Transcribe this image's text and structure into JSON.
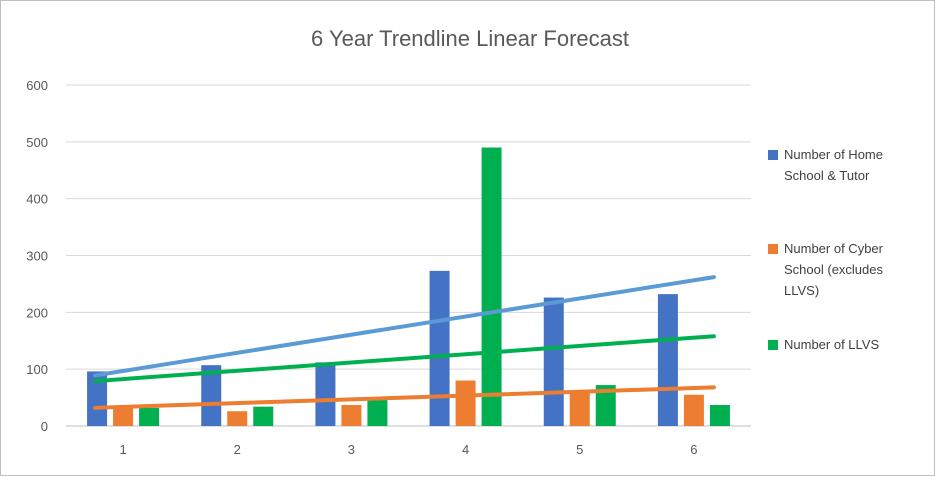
{
  "chart_data": {
    "type": "bar",
    "title": "6 Year Trendline Linear Forecast",
    "xlabel": "",
    "ylabel": "",
    "categories": [
      "1",
      "2",
      "3",
      "4",
      "5",
      "6"
    ],
    "ylim": [
      0,
      600
    ],
    "yticks": [
      "0",
      "100",
      "200",
      "300",
      "400",
      "500",
      "600"
    ],
    "grid": true,
    "legend_position": "right",
    "series": [
      {
        "name": "Number of Home School & Tutor",
        "legend_lines": [
          "Number of Home",
          "School & Tutor"
        ],
        "color": "#4472C4",
        "trend_color": "#5B9BD5",
        "values": [
          96,
          107,
          112,
          273,
          226,
          232
        ],
        "trendline": [
          89,
          262
        ]
      },
      {
        "name": "Number of Cyber School (excludes LLVS)",
        "legend_lines": [
          "Number of Cyber",
          "School (excludes",
          "LLVS)"
        ],
        "color": "#ED7D31",
        "trend_color": "#ED7D31",
        "values": [
          36,
          26,
          37,
          80,
          60,
          55
        ],
        "trendline": [
          32,
          68
        ]
      },
      {
        "name": "Number of LLVS",
        "legend_lines": [
          "Number of LLVS"
        ],
        "color": "#00B050",
        "trend_color": "#00B050",
        "values": [
          32,
          34,
          46,
          490,
          72,
          37
        ],
        "trendline": [
          79,
          158
        ]
      }
    ]
  }
}
